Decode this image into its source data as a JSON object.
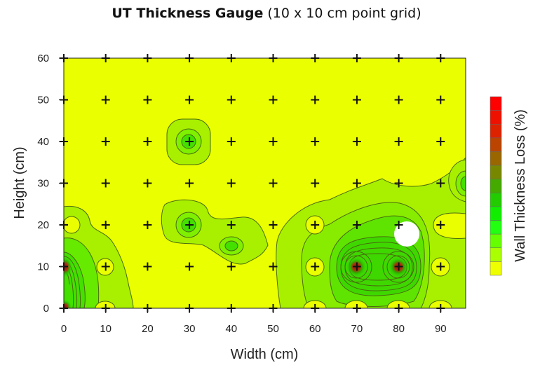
{
  "chart_data": {
    "type": "heatmap",
    "subtype": "filled-contour",
    "title": "UT Thickness Gauge",
    "subtitle": "(10 x 10 cm point grid)",
    "xlabel": "Width (cm)",
    "ylabel": "Height (cm)",
    "colorbar_label": "Wall Thickness Loss (%)",
    "xlim": [
      0,
      96
    ],
    "ylim": [
      0,
      60
    ],
    "x_ticks": [
      0,
      10,
      20,
      30,
      40,
      50,
      60,
      70,
      80,
      90
    ],
    "y_ticks": [
      0,
      10,
      20,
      30,
      40,
      50,
      60
    ],
    "grid_points": "measurement points every 10 cm (marked +)",
    "colorbar_colors": [
      "#ff0000",
      "#ee1100",
      "#dd2200",
      "#bb4400",
      "#996600",
      "#778800",
      "#44aa00",
      "#22cc00",
      "#11ee00",
      "#22ff11",
      "#66ff00",
      "#aaff00",
      "#eeff00"
    ],
    "hotspots": [
      {
        "x": 0,
        "y": 10,
        "level": "high"
      },
      {
        "x": 0,
        "y": 0,
        "level": "high"
      },
      {
        "x": 70,
        "y": 10,
        "level": "high"
      },
      {
        "x": 80,
        "y": 10,
        "level": "high"
      },
      {
        "x": 30,
        "y": 40,
        "level": "moderate"
      },
      {
        "x": 30,
        "y": 20,
        "level": "moderate"
      },
      {
        "x": 40,
        "y": 15,
        "level": "moderate"
      },
      {
        "x": 60,
        "y": 15,
        "level": "low"
      },
      {
        "x": 96,
        "y": 30,
        "level": "moderate"
      }
    ],
    "annotations": [
      {
        "type": "white-circle",
        "x": 82,
        "y": 18
      }
    ],
    "legend_position": "right"
  },
  "title": {
    "bold": "UT Thickness Gauge",
    "rest": " (10 x 10 cm point grid)"
  },
  "axes": {
    "x_label": "Width (cm)",
    "y_label": "Height (cm)",
    "x_ticks": [
      "0",
      "10",
      "20",
      "30",
      "40",
      "50",
      "60",
      "70",
      "80",
      "90"
    ],
    "y_ticks": [
      "60",
      "50",
      "40",
      "30",
      "20",
      "10",
      "0"
    ],
    "colorbar_label": "Wall Thickness Loss (%)"
  }
}
